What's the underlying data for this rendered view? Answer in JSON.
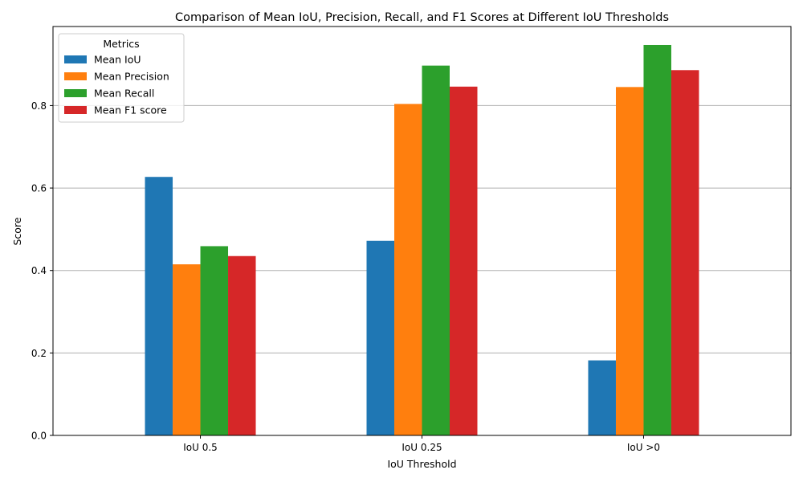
{
  "chart_data": {
    "type": "bar",
    "title": "Comparison of Mean IoU, Precision, Recall, and F1 Scores at Different IoU Thresholds",
    "xlabel": "IoU Threshold",
    "ylabel": "Score",
    "categories": [
      "IoU 0.5",
      "IoU 0.25",
      "IoU >0"
    ],
    "series": [
      {
        "name": "Mean IoU",
        "color": "#1f77b4",
        "values": [
          0.627,
          0.472,
          0.182
        ]
      },
      {
        "name": "Mean Precision",
        "color": "#ff7f0e",
        "values": [
          0.415,
          0.804,
          0.845
        ]
      },
      {
        "name": "Mean Recall",
        "color": "#2ca02c",
        "values": [
          0.459,
          0.897,
          0.947
        ]
      },
      {
        "name": "Mean F1 score",
        "color": "#d62728",
        "values": [
          0.435,
          0.846,
          0.886
        ]
      }
    ],
    "ylim": [
      0,
      0.9918
    ],
    "yticks": [
      0.0,
      0.2,
      0.4,
      0.6,
      0.8
    ],
    "ytick_labels": [
      "0.0",
      "0.2",
      "0.4",
      "0.6",
      "0.8"
    ],
    "grid": "y",
    "legend": {
      "title": "Metrics",
      "position": "top-left"
    }
  }
}
